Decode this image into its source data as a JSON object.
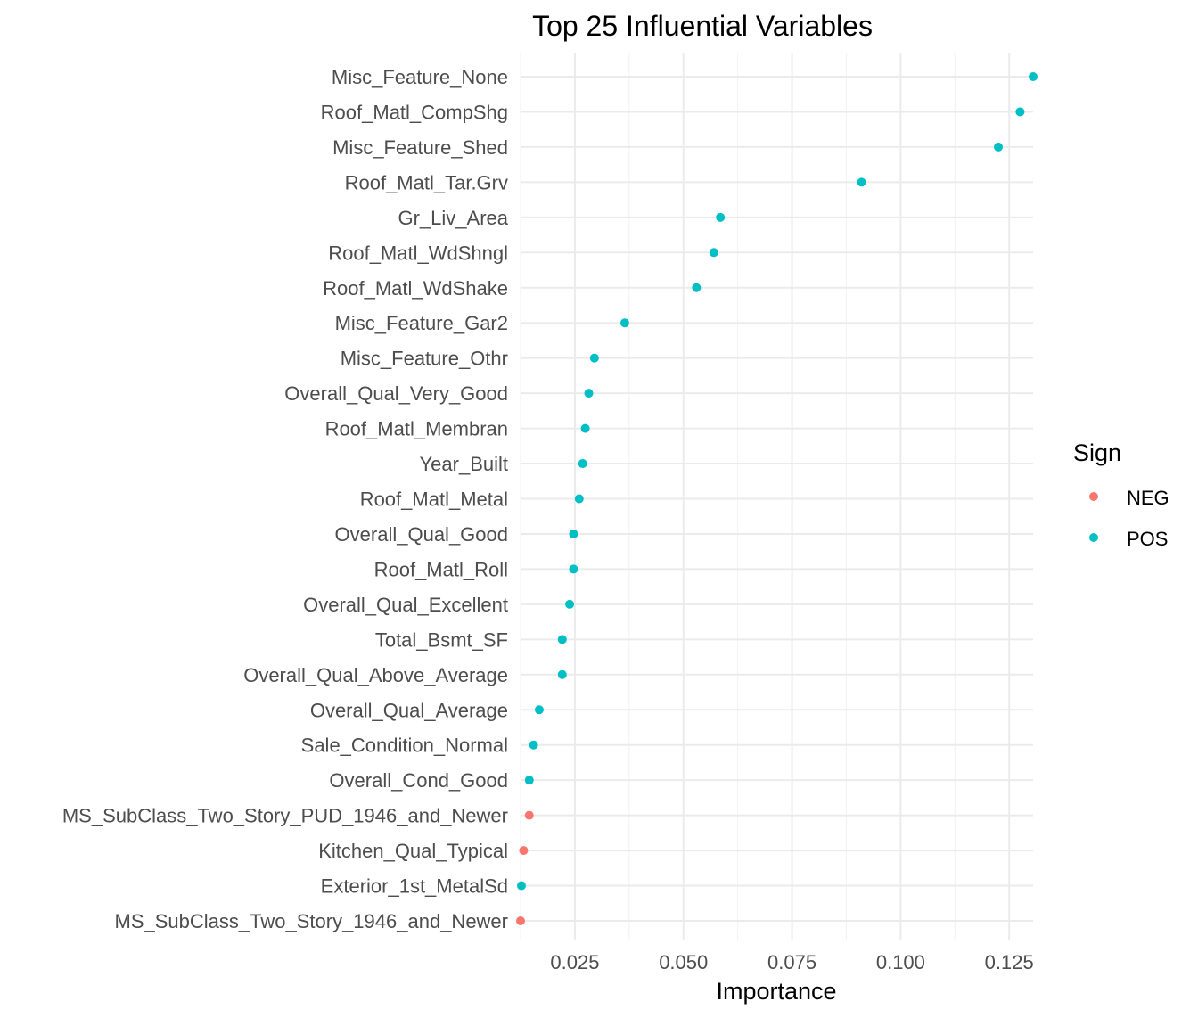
{
  "chart_data": {
    "type": "scatter",
    "title": "Top 25 Influential Variables",
    "xlabel": "Importance",
    "ylabel": "",
    "xlim": [
      0.0125,
      0.1305
    ],
    "x_ticks": [
      "0.025",
      "0.050",
      "0.075",
      "0.100",
      "0.125"
    ],
    "x_tick_values": [
      0.025,
      0.05,
      0.075,
      0.1,
      0.125
    ],
    "grid": true,
    "legend": {
      "title": "Sign",
      "position": "right",
      "entries": [
        {
          "label": "NEG",
          "color": "#F8766D"
        },
        {
          "label": "POS",
          "color": "#00BFC4"
        }
      ]
    },
    "points": [
      {
        "variable": "Misc_Feature_None",
        "importance": 0.1305,
        "sign": "POS"
      },
      {
        "variable": "Roof_Matl_CompShg",
        "importance": 0.1275,
        "sign": "POS"
      },
      {
        "variable": "Misc_Feature_Shed",
        "importance": 0.1225,
        "sign": "POS"
      },
      {
        "variable": "Roof_Matl_Tar.Grv",
        "importance": 0.091,
        "sign": "POS"
      },
      {
        "variable": "Gr_Liv_Area",
        "importance": 0.0585,
        "sign": "POS"
      },
      {
        "variable": "Roof_Matl_WdShngl",
        "importance": 0.057,
        "sign": "POS"
      },
      {
        "variable": "Roof_Matl_WdShake",
        "importance": 0.053,
        "sign": "POS"
      },
      {
        "variable": "Misc_Feature_Gar2",
        "importance": 0.0365,
        "sign": "POS"
      },
      {
        "variable": "Misc_Feature_Othr",
        "importance": 0.0295,
        "sign": "POS"
      },
      {
        "variable": "Overall_Qual_Very_Good",
        "importance": 0.0282,
        "sign": "POS"
      },
      {
        "variable": "Roof_Matl_Membran",
        "importance": 0.0274,
        "sign": "POS"
      },
      {
        "variable": "Year_Built",
        "importance": 0.0268,
        "sign": "POS"
      },
      {
        "variable": "Roof_Matl_Metal",
        "importance": 0.026,
        "sign": "POS"
      },
      {
        "variable": "Overall_Qual_Good",
        "importance": 0.0247,
        "sign": "POS"
      },
      {
        "variable": "Roof_Matl_Roll",
        "importance": 0.0247,
        "sign": "POS"
      },
      {
        "variable": "Overall_Qual_Excellent",
        "importance": 0.0238,
        "sign": "POS"
      },
      {
        "variable": "Total_Bsmt_SF",
        "importance": 0.0221,
        "sign": "POS"
      },
      {
        "variable": "Overall_Qual_Above_Average",
        "importance": 0.0221,
        "sign": "POS"
      },
      {
        "variable": "Overall_Qual_Average",
        "importance": 0.0168,
        "sign": "POS"
      },
      {
        "variable": "Sale_Condition_Normal",
        "importance": 0.0155,
        "sign": "POS"
      },
      {
        "variable": "Overall_Cond_Good",
        "importance": 0.0145,
        "sign": "POS"
      },
      {
        "variable": "MS_SubClass_Two_Story_PUD_1946_and_Newer",
        "importance": 0.0145,
        "sign": "NEG"
      },
      {
        "variable": "Kitchen_Qual_Typical",
        "importance": 0.0132,
        "sign": "NEG"
      },
      {
        "variable": "Exterior_1st_MetalSd",
        "importance": 0.0127,
        "sign": "POS"
      },
      {
        "variable": "MS_SubClass_Two_Story_1946_and_Newer",
        "importance": 0.0125,
        "sign": "NEG"
      }
    ]
  }
}
